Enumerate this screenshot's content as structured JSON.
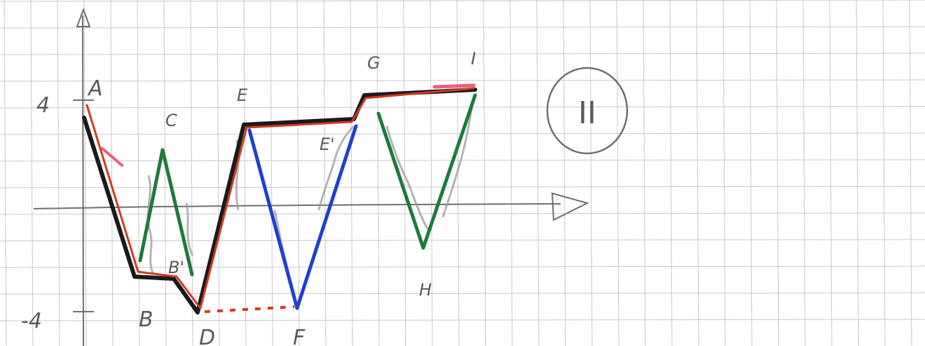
{
  "labels": {
    "axis_top": "4",
    "axis_bottom": "-4",
    "A": "A",
    "B": "B",
    "B_prime": "B'",
    "C": "C",
    "D": "D",
    "E": "E",
    "E_prime": "E'",
    "F": "F",
    "G": "G",
    "H": "H",
    "I": "I",
    "badge": "II"
  },
  "colors": {
    "paper": "#ffffff",
    "grid": "#c9c9c9",
    "pencil": "#7a7a7a",
    "black": "#1a1a1a",
    "red": "#d23a1e",
    "green": "#1f7a3a",
    "blue": "#1e3fd0",
    "pink": "#e8607a"
  }
}
